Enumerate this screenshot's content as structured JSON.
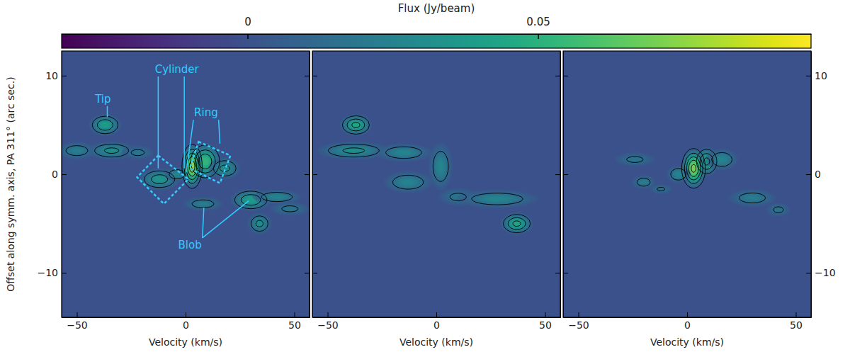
{
  "chart_data": {
    "type": "heatmap",
    "x_label": "Velocity (km/s)",
    "y_label": "Offset along symm. axis, PA 311° (arc sec.)",
    "xlim": [
      -57,
      57
    ],
    "ylim": [
      -14.5,
      12.5
    ],
    "xticks": [
      -50,
      0,
      50
    ],
    "yticks": [
      -10,
      0,
      10
    ],
    "colorbar": {
      "label": "Flux (Jy/beam)",
      "range": [
        -0.032,
        0.097
      ],
      "ticks": [
        0,
        0.05
      ]
    },
    "contour_levels": [
      0.015,
      0.03,
      0.045,
      0.06,
      0.075
    ],
    "panels": [
      {
        "components": [
          {
            "velocity": -37,
            "offset": 5,
            "velocity_width": 4,
            "offset_width": 0.6,
            "flux": 0.045
          },
          {
            "velocity": -50,
            "offset": 2.4,
            "velocity_width": 5,
            "offset_width": 0.5,
            "flux": 0.025
          },
          {
            "velocity": -34,
            "offset": 2.4,
            "velocity_width": 6,
            "offset_width": 0.5,
            "flux": 0.035
          },
          {
            "velocity": -22,
            "offset": 2.2,
            "velocity_width": 4,
            "offset_width": 0.4,
            "flux": 0.02
          },
          {
            "velocity": -12,
            "offset": -0.5,
            "velocity_width": 5,
            "offset_width": 0.6,
            "flux": 0.04
          },
          {
            "velocity": -4,
            "offset": 0,
            "velocity_width": 3,
            "offset_width": 0.4,
            "flux": 0.03
          },
          {
            "velocity": 9,
            "offset": 1.3,
            "velocity_width": 4,
            "offset_width": 1.0,
            "flux": 0.06
          },
          {
            "velocity": 18,
            "offset": 0.6,
            "velocity_width": 4,
            "offset_width": 0.6,
            "flux": 0.035
          },
          {
            "velocity": 3,
            "offset": 0.8,
            "velocity_width": 2.5,
            "offset_width": 1.2,
            "flux": 0.085
          },
          {
            "velocity": 8,
            "offset": -3,
            "velocity_width": 5,
            "offset_width": 0.4,
            "flux": 0.025
          },
          {
            "velocity": 30,
            "offset": -2.6,
            "velocity_width": 5,
            "offset_width": 0.6,
            "flux": 0.045
          },
          {
            "velocity": 42,
            "offset": -2.3,
            "velocity_width": 6,
            "offset_width": 0.4,
            "flux": 0.03
          },
          {
            "velocity": 34,
            "offset": -5,
            "velocity_width": 3,
            "offset_width": 0.6,
            "flux": 0.035
          },
          {
            "velocity": 48,
            "offset": -3.5,
            "velocity_width": 5,
            "offset_width": 0.4,
            "flux": 0.02
          }
        ],
        "annotations": [
          {
            "text": "Tip",
            "x": -38,
            "y": 7.6,
            "targets": [
              [
                -36,
                5.8
              ]
            ]
          },
          {
            "text": "Cylinder",
            "x": -4,
            "y": 10.6,
            "targets": [
              [
                -12.6,
                0.6
              ],
              [
                -0.6,
                0.6
              ]
            ]
          },
          {
            "text": "Ring",
            "x": 9.4,
            "y": 6.2,
            "targets": [
              [
                0.3,
                0.2
              ],
              [
                15.8,
                3.1
              ]
            ]
          },
          {
            "text": "Blob",
            "x": 2,
            "y": -7.2,
            "targets": [
              [
                8.4,
                -3.4
              ],
              [
                29,
                -2.7
              ]
            ]
          }
        ],
        "regions": [
          {
            "line_style": "dashed",
            "corners": [
              [
                -12.6,
                1.9
              ],
              [
                1.3,
                -0.5
              ],
              [
                -10,
                -3.0
              ],
              [
                -22.3,
                -0.3
              ]
            ]
          },
          {
            "line_style": "dashed",
            "corners": [
              [
                6,
                3.3
              ],
              [
                20.6,
                1.9
              ],
              [
                15.8,
                -0.9
              ],
              [
                1.9,
                0.6
              ]
            ]
          }
        ]
      },
      {
        "components": [
          {
            "velocity": -37,
            "offset": 5,
            "velocity_width": 4,
            "offset_width": 0.6,
            "flux": 0.05
          },
          {
            "velocity": -38,
            "offset": 2.4,
            "velocity_width": 9,
            "offset_width": 0.5,
            "flux": 0.035
          },
          {
            "velocity": -15,
            "offset": 2.2,
            "velocity_width": 7,
            "offset_width": 0.5,
            "flux": 0.03
          },
          {
            "velocity": 2,
            "offset": 0.8,
            "velocity_width": 3,
            "offset_width": 1.3,
            "flux": 0.03
          },
          {
            "velocity": -13,
            "offset": -0.8,
            "velocity_width": 6,
            "offset_width": 0.6,
            "flux": 0.03
          },
          {
            "velocity": 10,
            "offset": -2.3,
            "velocity_width": 5,
            "offset_width": 0.5,
            "flux": 0.02
          },
          {
            "velocity": 28,
            "offset": -2.5,
            "velocity_width": 10,
            "offset_width": 0.5,
            "flux": 0.03
          },
          {
            "velocity": 37,
            "offset": -5,
            "velocity_width": 4,
            "offset_width": 0.6,
            "flux": 0.05
          }
        ],
        "annotations": [],
        "regions": []
      },
      {
        "components": [
          {
            "velocity": 9,
            "offset": 1.3,
            "velocity_width": 3,
            "offset_width": 0.8,
            "flux": 0.05
          },
          {
            "velocity": 3,
            "offset": 0.6,
            "velocity_width": 3,
            "offset_width": 1.1,
            "flux": 0.08
          },
          {
            "velocity": -4,
            "offset": 0,
            "velocity_width": 3,
            "offset_width": 0.5,
            "flux": 0.03
          },
          {
            "velocity": 16,
            "offset": 1.5,
            "velocity_width": 4,
            "offset_width": 0.6,
            "flux": 0.03
          },
          {
            "velocity": -20,
            "offset": -0.8,
            "velocity_width": 3,
            "offset_width": 0.4,
            "flux": 0.025
          },
          {
            "velocity": -24,
            "offset": 1.5,
            "velocity_width": 5,
            "offset_width": 0.4,
            "flux": 0.02
          },
          {
            "velocity": 30,
            "offset": -2.4,
            "velocity_width": 6,
            "offset_width": 0.5,
            "flux": 0.025
          },
          {
            "velocity": 42,
            "offset": -3.6,
            "velocity_width": 3,
            "offset_width": 0.4,
            "flux": 0.02
          },
          {
            "velocity": -12,
            "offset": -1.5,
            "velocity_width": 3,
            "offset_width": 0.3,
            "flux": 0.018
          }
        ],
        "annotations": [],
        "regions": []
      }
    ]
  }
}
